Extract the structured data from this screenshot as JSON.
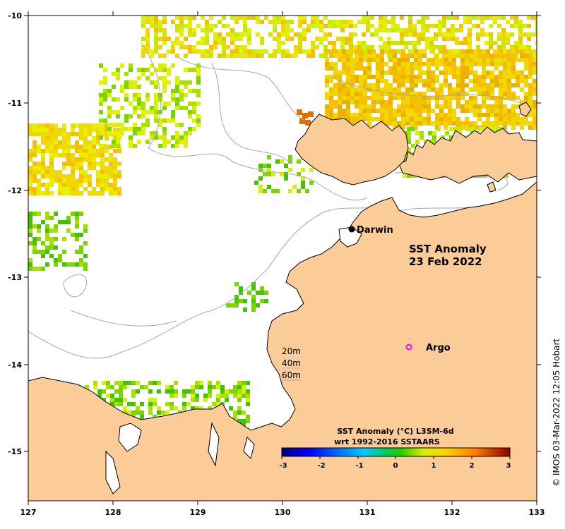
{
  "map": {
    "title_line1": "SST Anomaly",
    "title_line2": "23 Feb 2022",
    "lon_ticks": [
      "127",
      "128",
      "129",
      "130",
      "131",
      "132",
      "133"
    ],
    "lat_ticks": [
      "-10",
      "-11",
      "-12",
      "-13",
      "-14",
      "-15"
    ],
    "places": {
      "darwin": "Darwin",
      "argo": "Argo"
    },
    "depth_contours": [
      "20m",
      "40m",
      "60m"
    ],
    "colorbar": {
      "title_line1": "SST Anomaly (°C) L3SM-6d",
      "title_line2": "wrt 1992-2016 SSTAARS",
      "ticks": [
        "-3",
        "-2",
        "-1",
        "0",
        "1",
        "2",
        "3"
      ],
      "min": -3,
      "max": 3
    },
    "credit": "© IMOS 03-Mar-2022 12:05 Hobart",
    "colors": {
      "land": "#fbcb98",
      "ocean": "#ffffff",
      "coast": "#000000",
      "bathymetry": "#a8a8a8",
      "argo_marker": "#ff00ff"
    }
  }
}
